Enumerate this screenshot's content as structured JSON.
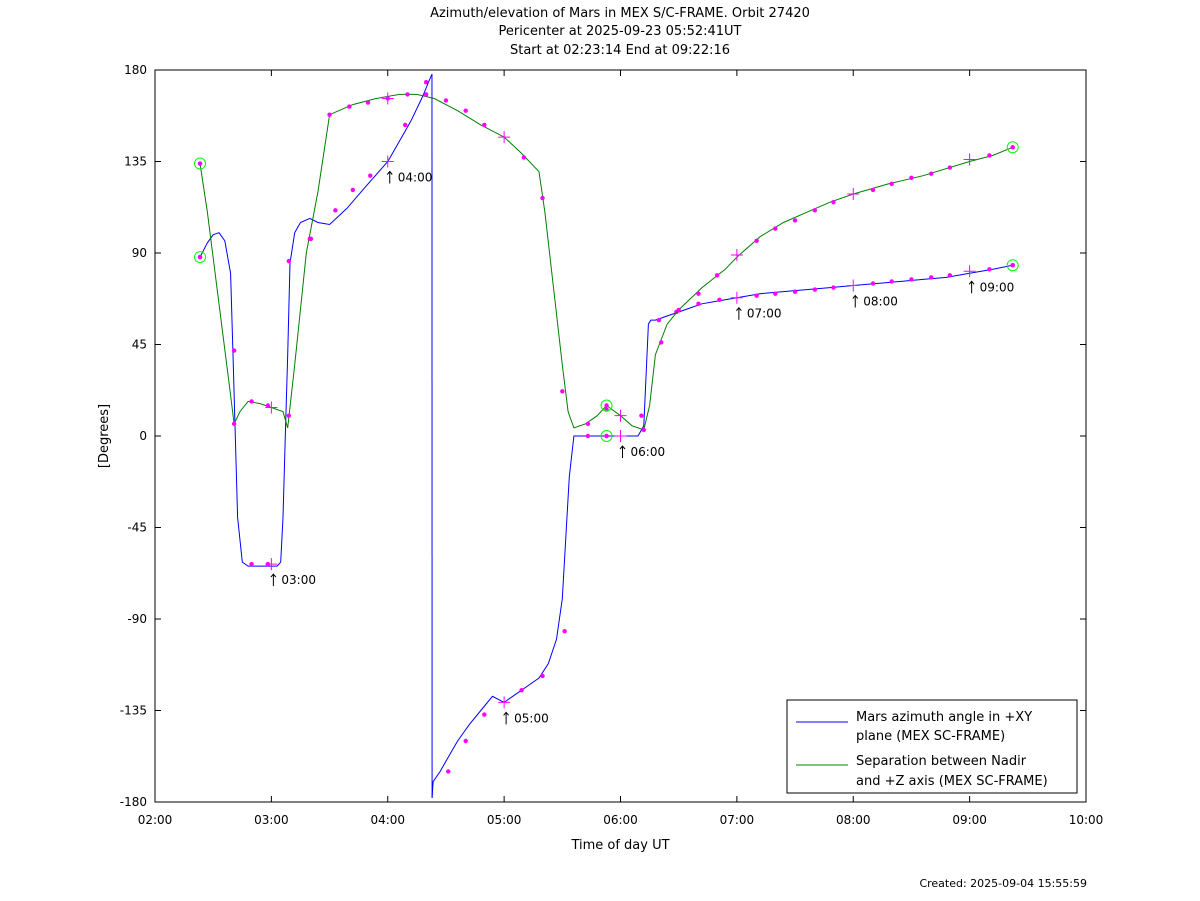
{
  "header": {
    "title": "Azimuth/elevation of Mars in MEX S/C-FRAME.  Orbit 27420",
    "pericenter": "Pericenter at 2025-09-23 05:52:41UT",
    "span": "Start at 02:23:14 End at 09:22:16"
  },
  "footer": {
    "created": "Created: 2025-09-04 15:55:59"
  },
  "chart_data": {
    "type": "line",
    "title": "Azimuth/elevation of Mars in MEX S/C-FRAME.  Orbit 27420",
    "xlabel": "Time of day UT",
    "ylabel": "[Degrees]",
    "x_unit": "hours UT",
    "xlim": [
      2,
      10
    ],
    "ylim": [
      -180,
      180
    ],
    "xticks": [
      2,
      3,
      4,
      5,
      6,
      7,
      8,
      9,
      10
    ],
    "xtick_labels": [
      "02:00",
      "03:00",
      "04:00",
      "05:00",
      "06:00",
      "07:00",
      "08:00",
      "09:00",
      "10:00"
    ],
    "yticks": [
      -180,
      -135,
      -90,
      -45,
      0,
      45,
      90,
      135,
      180
    ],
    "ytick_labels": [
      "-180",
      "-135",
      "-90",
      "-45",
      "0",
      "45",
      "90",
      "135",
      "180"
    ],
    "grid": false,
    "legend_position": "bottom-right",
    "colors": {
      "azimuth": "#0000ff",
      "separation": "#008000",
      "markers": "#ff00ff",
      "endpoints": "#00ff00"
    },
    "series": [
      {
        "name": "Mars azimuth angle in +XY plane (MEX SC-FRAME)",
        "legend_lines": [
          "Mars azimuth angle in +XY",
          "plane (MEX SC-FRAME)"
        ],
        "color": "#0000ff",
        "x": [
          2.387,
          2.45,
          2.5,
          2.55,
          2.6,
          2.65,
          2.67,
          2.69,
          2.71,
          2.75,
          2.8,
          2.85,
          2.95,
          3.0,
          3.05,
          3.08,
          3.1,
          3.12,
          3.14,
          3.16,
          3.2,
          3.25,
          3.33,
          3.4,
          3.5,
          3.65,
          3.8,
          4.0,
          4.1,
          4.2,
          4.3,
          4.35,
          4.38,
          4.381,
          4.39,
          4.45,
          4.5,
          4.6,
          4.7,
          4.8,
          4.9,
          5.0,
          5.1,
          5.2,
          5.3,
          5.38,
          5.45,
          5.5,
          5.53,
          5.56,
          5.6,
          5.65,
          5.7,
          5.8,
          5.88,
          6.0,
          6.1,
          6.15,
          6.2,
          6.22,
          6.24,
          6.26,
          6.3,
          6.4,
          6.5,
          6.6,
          6.7,
          6.8,
          6.9,
          7.0,
          7.2,
          7.4,
          7.6,
          7.8,
          8.0,
          8.2,
          8.4,
          8.6,
          8.8,
          9.0,
          9.2,
          9.37
        ],
        "y": [
          88,
          95,
          99,
          100,
          96,
          80,
          40,
          0,
          -40,
          -62,
          -64,
          -64,
          -64,
          -64,
          -64,
          -62,
          -40,
          0,
          40,
          85,
          100,
          105,
          107,
          105,
          104,
          112,
          122,
          135,
          145,
          155,
          167,
          174,
          178,
          -178,
          -170,
          -165,
          -160,
          -150,
          -142,
          -135,
          -128,
          -131,
          -127,
          -123,
          -119,
          -112,
          -100,
          -80,
          -50,
          -20,
          0,
          0,
          0,
          0,
          0,
          0,
          0,
          0,
          5,
          30,
          55,
          57,
          57,
          59,
          61,
          63,
          65,
          66,
          67,
          68,
          70,
          71,
          72,
          73,
          74,
          75,
          76,
          77,
          78,
          80,
          82,
          84
        ],
        "markers": [
          [
            2.387,
            88
          ],
          [
            2.68,
            42
          ],
          [
            2.83,
            -63
          ],
          [
            2.97,
            -63
          ],
          [
            3.15,
            86
          ],
          [
            3.34,
            97
          ],
          [
            3.55,
            111
          ],
          [
            3.7,
            121
          ],
          [
            3.85,
            128
          ],
          [
            4.15,
            153
          ],
          [
            4.33,
            174
          ],
          [
            4.52,
            -165
          ],
          [
            4.67,
            -150
          ],
          [
            4.83,
            -137
          ],
          [
            5.15,
            -125
          ],
          [
            5.33,
            -118
          ],
          [
            5.52,
            -96
          ],
          [
            5.72,
            0
          ],
          [
            5.88,
            0
          ],
          [
            6.18,
            10
          ],
          [
            6.33,
            57
          ],
          [
            6.48,
            61
          ],
          [
            6.67,
            65
          ],
          [
            6.85,
            67
          ],
          [
            7.17,
            69
          ],
          [
            7.33,
            70
          ],
          [
            7.5,
            71
          ],
          [
            7.67,
            72
          ],
          [
            7.83,
            73
          ],
          [
            8.17,
            75
          ],
          [
            8.33,
            76
          ],
          [
            8.5,
            77
          ],
          [
            8.67,
            78
          ],
          [
            8.83,
            79
          ],
          [
            9.17,
            82
          ],
          [
            9.37,
            84
          ]
        ],
        "hour_marks": [
          [
            3.0,
            -63
          ],
          [
            4.0,
            135
          ],
          [
            5.0,
            -131
          ],
          [
            6.0,
            0
          ],
          [
            7.0,
            68
          ],
          [
            8.0,
            74
          ],
          [
            9.0,
            81
          ]
        ],
        "endpoints": [
          [
            2.387,
            88
          ],
          [
            5.88,
            0
          ],
          [
            9.37,
            84
          ]
        ]
      },
      {
        "name": "Separation between Nadir and +Z axis (MEX SC-FRAME)",
        "legend_lines": [
          "Separation between Nadir",
          "and +Z axis (MEX SC-FRAME)"
        ],
        "color": "#008000",
        "x": [
          2.387,
          2.45,
          2.55,
          2.65,
          2.68,
          2.73,
          2.8,
          2.9,
          3.0,
          3.1,
          3.14,
          3.2,
          3.3,
          3.4,
          3.5,
          3.7,
          3.9,
          4.1,
          4.25,
          4.4,
          4.6,
          4.8,
          5.0,
          5.15,
          5.3,
          5.35,
          5.45,
          5.5,
          5.55,
          5.6,
          5.7,
          5.8,
          5.88,
          6.0,
          6.1,
          6.2,
          6.25,
          6.3,
          6.4,
          6.5,
          6.7,
          6.9,
          7.0,
          7.2,
          7.4,
          7.6,
          7.8,
          8.0,
          8.3,
          8.6,
          9.0,
          9.2,
          9.37
        ],
        "y": [
          134,
          110,
          65,
          20,
          6,
          12,
          17,
          16,
          14,
          12,
          4,
          35,
          90,
          120,
          158,
          163,
          166,
          168,
          168,
          166,
          160,
          153,
          147,
          139,
          130,
          110,
          60,
          35,
          12,
          4,
          6,
          10,
          15,
          10,
          5,
          3,
          15,
          40,
          55,
          62,
          73,
          82,
          88,
          98,
          105,
          110,
          115,
          119,
          124,
          128,
          135,
          138,
          142
        ],
        "markers": [
          [
            2.387,
            134
          ],
          [
            2.68,
            6
          ],
          [
            2.83,
            17
          ],
          [
            2.97,
            15
          ],
          [
            3.15,
            10
          ],
          [
            3.33,
            97
          ],
          [
            3.5,
            158
          ],
          [
            3.67,
            162
          ],
          [
            3.83,
            164
          ],
          [
            4.0,
            166
          ],
          [
            4.17,
            168
          ],
          [
            4.33,
            168
          ],
          [
            4.5,
            165
          ],
          [
            4.67,
            160
          ],
          [
            4.83,
            153
          ],
          [
            5.17,
            137
          ],
          [
            5.33,
            117
          ],
          [
            5.5,
            22
          ],
          [
            5.72,
            6
          ],
          [
            5.88,
            13
          ],
          [
            6.2,
            3
          ],
          [
            6.35,
            46
          ],
          [
            6.5,
            62
          ],
          [
            6.67,
            70
          ],
          [
            6.83,
            79
          ],
          [
            7.17,
            96
          ],
          [
            7.33,
            102
          ],
          [
            7.5,
            106
          ],
          [
            7.67,
            111
          ],
          [
            7.83,
            115
          ],
          [
            8.17,
            121
          ],
          [
            8.33,
            124
          ],
          [
            8.5,
            127
          ],
          [
            8.67,
            129
          ],
          [
            8.83,
            132
          ],
          [
            9.17,
            138
          ],
          [
            9.37,
            142
          ]
        ],
        "hour_marks": [
          [
            3.0,
            14
          ],
          [
            4.0,
            166
          ],
          [
            5.0,
            147
          ],
          [
            6.0,
            10
          ],
          [
            7.0,
            89
          ],
          [
            8.0,
            119
          ],
          [
            9.0,
            136
          ]
        ],
        "endpoints": [
          [
            2.387,
            134
          ],
          [
            5.88,
            15
          ],
          [
            9.37,
            142
          ]
        ]
      }
    ],
    "annotations": [
      {
        "text": "03:00",
        "x": 3.0,
        "y": -63
      },
      {
        "text": "04:00",
        "x": 4.0,
        "y": 135
      },
      {
        "text": "05:00",
        "x": 5.0,
        "y": -131
      },
      {
        "text": "06:00",
        "x": 6.0,
        "y": 0
      },
      {
        "text": "07:00",
        "x": 7.0,
        "y": 68
      },
      {
        "text": "08:00",
        "x": 8.0,
        "y": 74
      },
      {
        "text": "09:00",
        "x": 9.0,
        "y": 81
      }
    ]
  }
}
